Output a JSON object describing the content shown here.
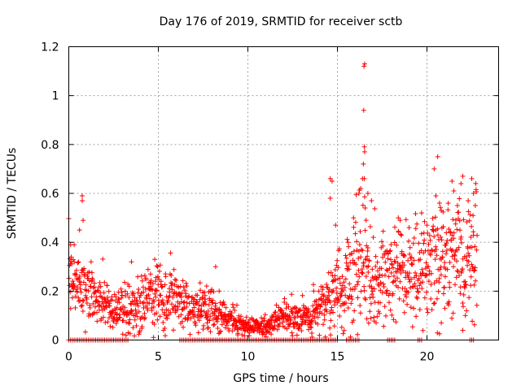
{
  "chart_data": {
    "type": "scatter",
    "title": "Day 176 of 2019, SRMTID for receiver sctb",
    "xlabel": "GPS time / hours",
    "ylabel": "SRMTID / TECUs",
    "xlim": [
      0,
      24
    ],
    "ylim": [
      0,
      1.2
    ],
    "xticks": [
      0,
      5,
      10,
      15,
      20
    ],
    "xtick_labels": [
      "0",
      "5",
      "10",
      "15",
      "20"
    ],
    "yticks": [
      0,
      0.2,
      0.4,
      0.6,
      0.8,
      1.0,
      1.2
    ],
    "ytick_labels": [
      "0",
      "0.2",
      "0.4",
      "0.6",
      "0.8",
      "1",
      "1.2"
    ],
    "grid": true,
    "marker": "+",
    "color": "#ff0000",
    "series": [
      {
        "name": "SRMTID",
        "profile_x": [
          0,
          0.3,
          0.8,
          1.5,
          2.5,
          3.5,
          4.0,
          5.0,
          5.8,
          7.0,
          8.0,
          9.0,
          10.0,
          11.0,
          12.0,
          13.5,
          14.5,
          15.5,
          16.3,
          17.0,
          18.0,
          19.0,
          20.0,
          21.0,
          22.0,
          22.8
        ],
        "profile_median": [
          0.3,
          0.22,
          0.24,
          0.17,
          0.13,
          0.12,
          0.17,
          0.18,
          0.17,
          0.13,
          0.12,
          0.08,
          0.06,
          0.05,
          0.1,
          0.09,
          0.17,
          0.25,
          0.3,
          0.22,
          0.27,
          0.27,
          0.28,
          0.33,
          0.33,
          0.36
        ],
        "profile_spread": [
          0.06,
          0.06,
          0.07,
          0.05,
          0.04,
          0.05,
          0.06,
          0.07,
          0.06,
          0.04,
          0.05,
          0.03,
          0.02,
          0.02,
          0.03,
          0.04,
          0.07,
          0.1,
          0.12,
          0.1,
          0.1,
          0.09,
          0.1,
          0.12,
          0.11,
          0.12
        ],
        "outliers": [
          {
            "x": 0.1,
            "y": 0.39
          },
          {
            "x": 0.3,
            "y": 0.39
          },
          {
            "x": 0.6,
            "y": 0.45
          },
          {
            "x": 0.75,
            "y": 0.59
          },
          {
            "x": 0.75,
            "y": 0.57
          },
          {
            "x": 0.8,
            "y": 0.49
          },
          {
            "x": 3.5,
            "y": 0.32
          },
          {
            "x": 4.8,
            "y": 0.33
          },
          {
            "x": 8.2,
            "y": 0.3
          },
          {
            "x": 14.6,
            "y": 0.66
          },
          {
            "x": 14.6,
            "y": 0.58
          },
          {
            "x": 14.7,
            "y": 0.65
          },
          {
            "x": 14.9,
            "y": 0.47
          },
          {
            "x": 15.6,
            "y": 0.4
          },
          {
            "x": 15.9,
            "y": 0.5
          },
          {
            "x": 16.2,
            "y": 0.6
          },
          {
            "x": 16.3,
            "y": 0.62
          },
          {
            "x": 16.4,
            "y": 0.66
          },
          {
            "x": 16.45,
            "y": 0.72
          },
          {
            "x": 16.5,
            "y": 0.66
          },
          {
            "x": 16.55,
            "y": 0.54
          },
          {
            "x": 16.6,
            "y": 0.49
          },
          {
            "x": 16.5,
            "y": 0.79
          },
          {
            "x": 16.52,
            "y": 0.77
          },
          {
            "x": 16.47,
            "y": 0.94
          },
          {
            "x": 16.48,
            "y": 1.12
          },
          {
            "x": 16.52,
            "y": 1.13
          },
          {
            "x": 16.7,
            "y": 0.6
          },
          {
            "x": 16.9,
            "y": 0.57
          },
          {
            "x": 18.4,
            "y": 0.5
          },
          {
            "x": 18.5,
            "y": 0.49
          },
          {
            "x": 19.0,
            "y": 0.46
          },
          {
            "x": 19.7,
            "y": 0.52
          },
          {
            "x": 20.0,
            "y": 0.47
          },
          {
            "x": 20.4,
            "y": 0.7
          },
          {
            "x": 20.6,
            "y": 0.75
          },
          {
            "x": 20.5,
            "y": 0.59
          },
          {
            "x": 20.7,
            "y": 0.56
          },
          {
            "x": 20.8,
            "y": 0.53
          },
          {
            "x": 21.4,
            "y": 0.65
          },
          {
            "x": 21.5,
            "y": 0.61
          },
          {
            "x": 21.7,
            "y": 0.55
          },
          {
            "x": 21.9,
            "y": 0.64
          },
          {
            "x": 22.0,
            "y": 0.67
          },
          {
            "x": 22.3,
            "y": 0.57
          },
          {
            "x": 22.5,
            "y": 0.66
          },
          {
            "x": 22.6,
            "y": 0.6
          },
          {
            "x": 22.7,
            "y": 0.55
          },
          {
            "x": 22.0,
            "y": 0.04
          },
          {
            "x": 20.8,
            "y": 0.07
          },
          {
            "x": 21.0,
            "y": 0.13
          }
        ],
        "zero_value_ranges": [
          [
            0.0,
            3.4
          ],
          [
            6.2,
            15.0
          ],
          [
            15.5,
            16.2
          ],
          [
            17.8,
            18.3
          ],
          [
            19.5,
            19.8
          ],
          [
            22.4,
            22.7
          ]
        ],
        "n_points": 1500
      }
    ]
  }
}
